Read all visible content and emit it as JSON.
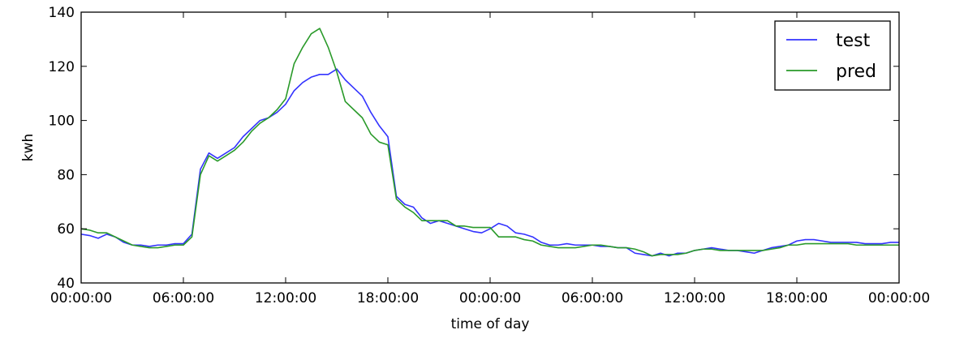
{
  "chart_data": {
    "type": "line",
    "xlabel": "time of day",
    "ylabel": "kwh",
    "ylim": [
      40,
      140
    ],
    "xlim": [
      0,
      48
    ],
    "x_unit": "hours",
    "y_ticks": [
      40,
      60,
      80,
      100,
      120,
      140
    ],
    "x_ticks": [
      {
        "value": 0,
        "label": "00:00:00"
      },
      {
        "value": 6,
        "label": "06:00:00"
      },
      {
        "value": 12,
        "label": "12:00:00"
      },
      {
        "value": 18,
        "label": "18:00:00"
      },
      {
        "value": 24,
        "label": "00:00:00"
      },
      {
        "value": 30,
        "label": "06:00:00"
      },
      {
        "value": 36,
        "label": "12:00:00"
      },
      {
        "value": 42,
        "label": "18:00:00"
      },
      {
        "value": 48,
        "label": "00:00:00"
      }
    ],
    "grid": false,
    "legend_position": "top-right",
    "series": [
      {
        "name": "test",
        "color": "#3333ff",
        "points": [
          [
            0,
            58
          ],
          [
            0.5,
            57.5
          ],
          [
            1,
            56.5
          ],
          [
            1.5,
            58
          ],
          [
            2,
            57
          ],
          [
            2.5,
            55
          ],
          [
            3,
            54
          ],
          [
            3.5,
            54
          ],
          [
            4,
            53.5
          ],
          [
            4.5,
            54
          ],
          [
            5,
            54
          ],
          [
            5.5,
            54.5
          ],
          [
            6,
            54.5
          ],
          [
            6.5,
            58
          ],
          [
            7,
            82
          ],
          [
            7.5,
            88
          ],
          [
            8,
            86
          ],
          [
            8.5,
            88
          ],
          [
            9,
            90
          ],
          [
            9.5,
            94
          ],
          [
            10,
            97
          ],
          [
            10.5,
            100
          ],
          [
            11,
            101
          ],
          [
            11.5,
            103
          ],
          [
            12,
            106
          ],
          [
            12.5,
            111
          ],
          [
            13,
            114
          ],
          [
            13.5,
            116
          ],
          [
            14,
            117
          ],
          [
            14.5,
            117
          ],
          [
            15,
            119
          ],
          [
            15.5,
            115
          ],
          [
            16,
            112
          ],
          [
            16.5,
            109
          ],
          [
            17,
            103
          ],
          [
            17.5,
            98
          ],
          [
            18,
            94
          ],
          [
            18.5,
            72
          ],
          [
            19,
            69
          ],
          [
            19.5,
            68
          ],
          [
            20,
            64
          ],
          [
            20.5,
            62
          ],
          [
            21,
            63
          ],
          [
            21.5,
            62
          ],
          [
            22,
            61
          ],
          [
            22.5,
            60
          ],
          [
            23,
            59
          ],
          [
            23.5,
            58.5
          ],
          [
            24,
            60
          ],
          [
            24.5,
            62
          ],
          [
            25,
            61
          ],
          [
            25.5,
            58.5
          ],
          [
            26,
            58
          ],
          [
            26.5,
            57
          ],
          [
            27,
            55
          ],
          [
            27.5,
            54
          ],
          [
            28,
            54
          ],
          [
            28.5,
            54.5
          ],
          [
            29,
            54
          ],
          [
            29.5,
            54
          ],
          [
            30,
            54
          ],
          [
            30.5,
            53.5
          ],
          [
            31,
            53.5
          ],
          [
            31.5,
            53
          ],
          [
            32,
            53
          ],
          [
            32.5,
            51
          ],
          [
            33,
            50.5
          ],
          [
            33.5,
            50
          ],
          [
            34,
            51
          ],
          [
            34.5,
            50
          ],
          [
            35,
            51
          ],
          [
            35.5,
            51
          ],
          [
            36,
            52
          ],
          [
            36.5,
            52.5
          ],
          [
            37,
            53
          ],
          [
            37.5,
            52.5
          ],
          [
            38,
            52
          ],
          [
            38.5,
            52
          ],
          [
            39,
            51.5
          ],
          [
            39.5,
            51
          ],
          [
            40,
            52
          ],
          [
            40.5,
            53
          ],
          [
            41,
            53.5
          ],
          [
            41.5,
            54
          ],
          [
            42,
            55.5
          ],
          [
            42.5,
            56
          ],
          [
            43,
            56
          ],
          [
            43.5,
            55.5
          ],
          [
            44,
            55
          ],
          [
            44.5,
            55
          ],
          [
            45,
            55
          ],
          [
            45.5,
            55
          ],
          [
            46,
            54.5
          ],
          [
            46.5,
            54.5
          ],
          [
            47,
            54.5
          ],
          [
            47.5,
            55
          ],
          [
            48,
            55
          ]
        ]
      },
      {
        "name": "pred",
        "color": "#2a9a2a",
        "points": [
          [
            0,
            60
          ],
          [
            0.5,
            59.5
          ],
          [
            1,
            58.5
          ],
          [
            1.5,
            58.5
          ],
          [
            2,
            57
          ],
          [
            2.5,
            55.5
          ],
          [
            3,
            54
          ],
          [
            3.5,
            53.5
          ],
          [
            4,
            53
          ],
          [
            4.5,
            53
          ],
          [
            5,
            53.5
          ],
          [
            5.5,
            54
          ],
          [
            6,
            54
          ],
          [
            6.5,
            57
          ],
          [
            7,
            80
          ],
          [
            7.5,
            87
          ],
          [
            8,
            85
          ],
          [
            8.5,
            87
          ],
          [
            9,
            89
          ],
          [
            9.5,
            92
          ],
          [
            10,
            96
          ],
          [
            10.5,
            99
          ],
          [
            11,
            101
          ],
          [
            11.5,
            104
          ],
          [
            12,
            108
          ],
          [
            12.5,
            121
          ],
          [
            13,
            127
          ],
          [
            13.5,
            132
          ],
          [
            14,
            134
          ],
          [
            14.5,
            127
          ],
          [
            15,
            118
          ],
          [
            15.5,
            107
          ],
          [
            16,
            104
          ],
          [
            16.5,
            101
          ],
          [
            17,
            95
          ],
          [
            17.5,
            92
          ],
          [
            18,
            91
          ],
          [
            18.5,
            71
          ],
          [
            19,
            68
          ],
          [
            19.5,
            66
          ],
          [
            20,
            63
          ],
          [
            20.5,
            63
          ],
          [
            21,
            63
          ],
          [
            21.5,
            63
          ],
          [
            22,
            61
          ],
          [
            22.5,
            61
          ],
          [
            23,
            60.5
          ],
          [
            23.5,
            60.5
          ],
          [
            24,
            60.5
          ],
          [
            24.5,
            57
          ],
          [
            25,
            57
          ],
          [
            25.5,
            57
          ],
          [
            26,
            56
          ],
          [
            26.5,
            55.5
          ],
          [
            27,
            54
          ],
          [
            27.5,
            53.5
          ],
          [
            28,
            53
          ],
          [
            28.5,
            53
          ],
          [
            29,
            53
          ],
          [
            29.5,
            53.5
          ],
          [
            30,
            54
          ],
          [
            30.5,
            54
          ],
          [
            31,
            53.5
          ],
          [
            31.5,
            53
          ],
          [
            32,
            53
          ],
          [
            32.5,
            52.5
          ],
          [
            33,
            51.5
          ],
          [
            33.5,
            50
          ],
          [
            34,
            50.5
          ],
          [
            34.5,
            50.5
          ],
          [
            35,
            50.5
          ],
          [
            35.5,
            51
          ],
          [
            36,
            52
          ],
          [
            36.5,
            52.5
          ],
          [
            37,
            52.5
          ],
          [
            37.5,
            52
          ],
          [
            38,
            52
          ],
          [
            38.5,
            52
          ],
          [
            39,
            52
          ],
          [
            39.5,
            52
          ],
          [
            40,
            52
          ],
          [
            40.5,
            52.5
          ],
          [
            41,
            53
          ],
          [
            41.5,
            54
          ],
          [
            42,
            54
          ],
          [
            42.5,
            54.5
          ],
          [
            43,
            54.5
          ],
          [
            43.5,
            54.5
          ],
          [
            44,
            54.5
          ],
          [
            44.5,
            54.5
          ],
          [
            45,
            54.5
          ],
          [
            45.5,
            54
          ],
          [
            46,
            54
          ],
          [
            46.5,
            54
          ],
          [
            47,
            54
          ],
          [
            47.5,
            54
          ],
          [
            48,
            54
          ]
        ]
      }
    ]
  }
}
